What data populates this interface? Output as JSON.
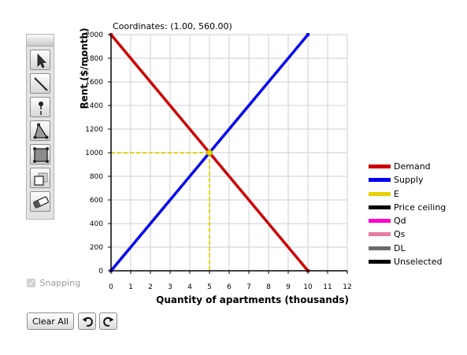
{
  "coordinates_readout": "Coordinates: (1.00, 560.00)",
  "toolbox": {
    "tools": [
      {
        "name": "select-tool",
        "icon": "arrow-cursor-icon"
      },
      {
        "name": "line-tool",
        "icon": "line-icon"
      },
      {
        "name": "point-tool",
        "icon": "point-pin-icon"
      },
      {
        "name": "triangle-tool",
        "icon": "triangle-icon"
      },
      {
        "name": "polygon-tool",
        "icon": "square-polygon-icon"
      },
      {
        "name": "layer-tool",
        "icon": "stacked-squares-icon"
      },
      {
        "name": "eraser-tool",
        "icon": "eraser-icon"
      }
    ]
  },
  "chart_data": {
    "type": "line",
    "ylabel": "Rent ($/month)",
    "xlabel": "Quantity of apartments (thousands)",
    "xlim": [
      0,
      12
    ],
    "ylim": [
      0,
      2000
    ],
    "x_ticks": [
      "0",
      "1",
      "2",
      "3",
      "4",
      "5",
      "6",
      "7",
      "8",
      "9",
      "10",
      "11",
      "12"
    ],
    "y_ticks": [
      "0",
      "200",
      "400",
      "600",
      "800",
      "1000",
      "1200",
      "1400",
      "1600",
      "1800",
      "2000"
    ],
    "grid": true,
    "series": [
      {
        "name": "Demand",
        "color": "#cc0000",
        "points": [
          [
            0,
            2000
          ],
          [
            10,
            0
          ]
        ]
      },
      {
        "name": "Supply",
        "color": "#0000ee",
        "points": [
          [
            0,
            0
          ],
          [
            10,
            2000
          ]
        ]
      }
    ],
    "equilibrium": {
      "name": "E",
      "x": 5,
      "y": 1000,
      "color": "#e6d200"
    }
  },
  "legend": [
    {
      "label": "Demand",
      "color": "#cc0000"
    },
    {
      "label": "Supply",
      "color": "#0000ee"
    },
    {
      "label": "E",
      "color": "#e6d200"
    },
    {
      "label": "Price ceiling",
      "color": "#000000"
    },
    {
      "label": "Qd",
      "color": "#ff00cc"
    },
    {
      "label": "Qs",
      "color": "#e87ba0"
    },
    {
      "label": "DL",
      "color": "#6b6b6b"
    },
    {
      "label": "Unselected",
      "color": "#000000"
    }
  ],
  "snapping": {
    "label": "Snapping",
    "checked": true
  },
  "buttons": {
    "clear_all": "Clear All",
    "undo_icon": "undo-arrow-icon",
    "redo_icon": "redo-arrow-icon"
  }
}
